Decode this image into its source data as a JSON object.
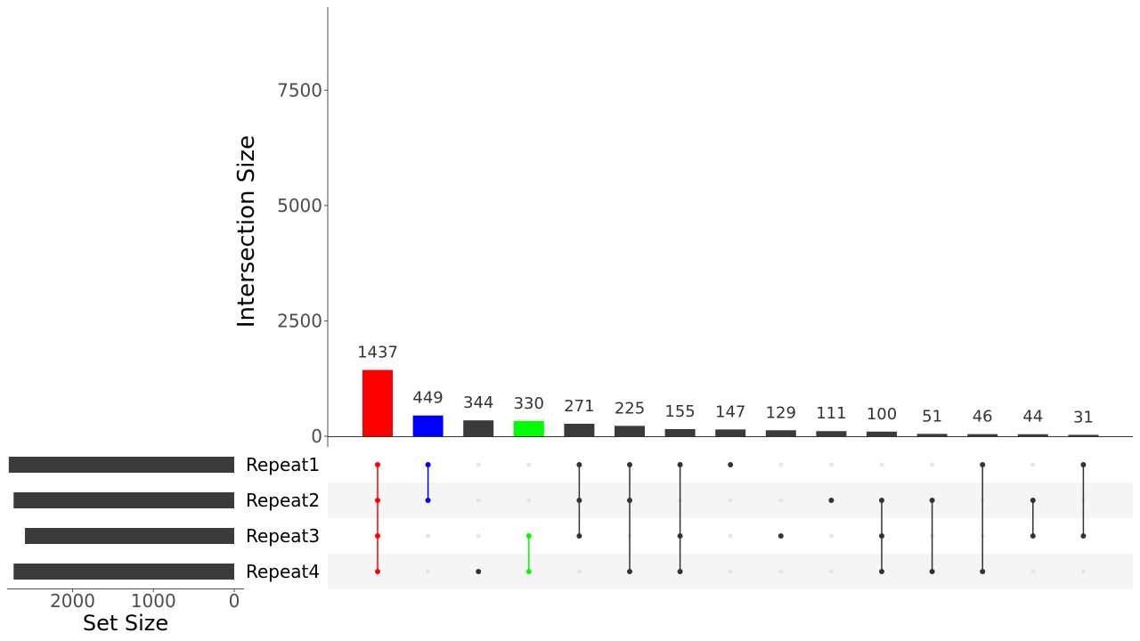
{
  "chart_data": {
    "type": "upset",
    "ylabel": "Intersection Size",
    "xlabel_sets": "Set Size",
    "y_ticks": [
      0,
      2500,
      5000,
      7500
    ],
    "ylim": [
      0,
      9300
    ],
    "set_size_ticks": [
      2000,
      1000,
      0
    ],
    "set_size_lim": [
      0,
      2850
    ],
    "sets": [
      {
        "name": "Repeat1",
        "size": 2790
      },
      {
        "name": "Repeat2",
        "size": 2730
      },
      {
        "name": "Repeat3",
        "size": 2590
      },
      {
        "name": "Repeat4",
        "size": 2730
      }
    ],
    "intersections": [
      {
        "value": 1437,
        "sets": [
          "Repeat1",
          "Repeat2",
          "Repeat3",
          "Repeat4"
        ],
        "color": "#ff0000"
      },
      {
        "value": 449,
        "sets": [
          "Repeat1",
          "Repeat2"
        ],
        "color": "#0000ff"
      },
      {
        "value": 344,
        "sets": [
          "Repeat4"
        ],
        "color": "#3b3b3b"
      },
      {
        "value": 330,
        "sets": [
          "Repeat3",
          "Repeat4"
        ],
        "color": "#00ff00"
      },
      {
        "value": 271,
        "sets": [
          "Repeat1",
          "Repeat2",
          "Repeat3"
        ],
        "color": "#3b3b3b"
      },
      {
        "value": 225,
        "sets": [
          "Repeat1",
          "Repeat2",
          "Repeat4"
        ],
        "color": "#3b3b3b"
      },
      {
        "value": 155,
        "sets": [
          "Repeat1",
          "Repeat3",
          "Repeat4"
        ],
        "color": "#3b3b3b"
      },
      {
        "value": 147,
        "sets": [
          "Repeat1"
        ],
        "color": "#3b3b3b"
      },
      {
        "value": 129,
        "sets": [
          "Repeat3"
        ],
        "color": "#3b3b3b"
      },
      {
        "value": 111,
        "sets": [
          "Repeat2"
        ],
        "color": "#3b3b3b"
      },
      {
        "value": 100,
        "sets": [
          "Repeat2",
          "Repeat3",
          "Repeat4"
        ],
        "color": "#3b3b3b"
      },
      {
        "value": 51,
        "sets": [
          "Repeat2",
          "Repeat4"
        ],
        "color": "#3b3b3b"
      },
      {
        "value": 46,
        "sets": [
          "Repeat1",
          "Repeat4"
        ],
        "color": "#3b3b3b"
      },
      {
        "value": 44,
        "sets": [
          "Repeat2",
          "Repeat3"
        ],
        "color": "#3b3b3b"
      },
      {
        "value": 31,
        "sets": [
          "Repeat1",
          "Repeat3"
        ],
        "color": "#3b3b3b"
      }
    ],
    "colors": {
      "default_bar": "#3b3b3b",
      "inactive_dot": "#e6e6e6",
      "stripe": "#f5f5f5",
      "set_bar": "#3b3b3b"
    }
  }
}
